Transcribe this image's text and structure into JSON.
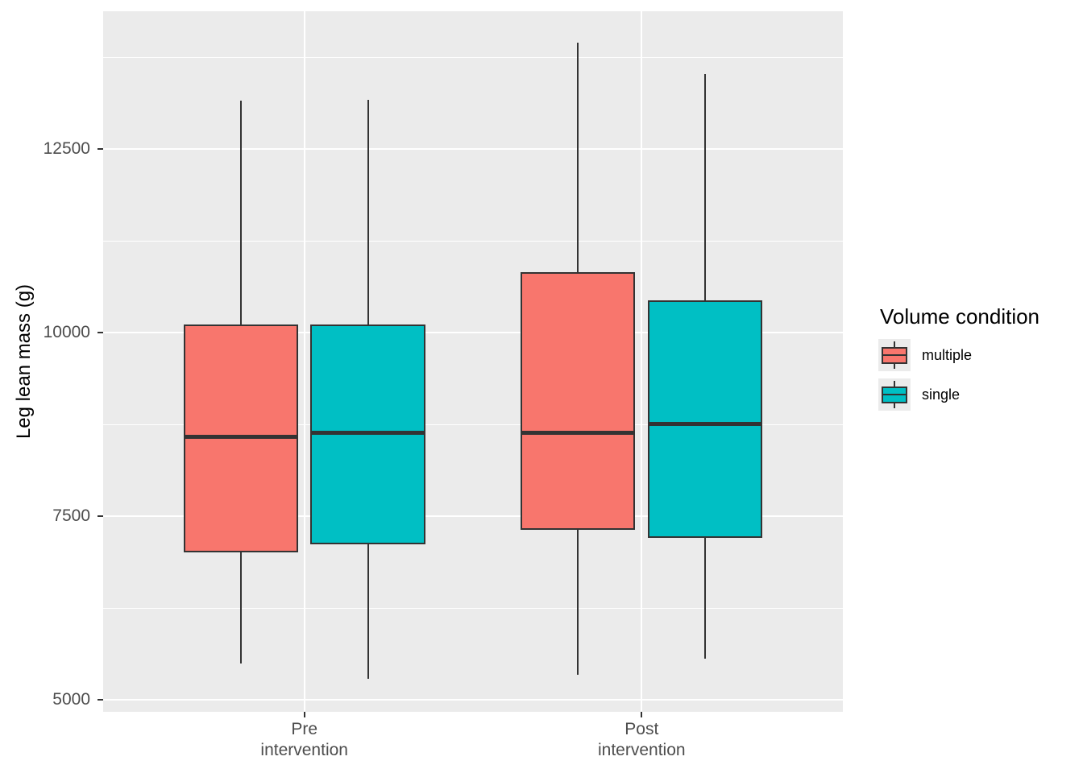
{
  "chart_data": {
    "type": "boxplot",
    "title": "",
    "xlabel": "",
    "ylabel": "Leg lean mass (g)",
    "categories": [
      "Pre intervention",
      "Post intervention"
    ],
    "category_label_lines": [
      [
        "Pre",
        "intervention"
      ],
      [
        "Post",
        "intervention"
      ]
    ],
    "ylim": [
      4835,
      14375
    ],
    "yticks": [
      5000,
      7500,
      10000,
      12500
    ],
    "minor_yticks": [
      6250,
      8750,
      11250,
      13750
    ],
    "grid": true,
    "legend": {
      "title": "Volume condition",
      "position": "right",
      "entries": [
        {
          "label": "multiple",
          "color": "#F8766D"
        },
        {
          "label": "single",
          "color": "#00BFC4"
        }
      ]
    },
    "series": [
      {
        "name": "multiple",
        "color": "#F8766D",
        "boxes": [
          {
            "category": "Pre intervention",
            "whisker_low": 5490,
            "q1": 7010,
            "median": 8590,
            "q3": 10110,
            "whisker_high": 13160
          },
          {
            "category": "Post intervention",
            "whisker_low": 5340,
            "q1": 7310,
            "median": 8640,
            "q3": 10820,
            "whisker_high": 13950
          }
        ]
      },
      {
        "name": "single",
        "color": "#00BFC4",
        "boxes": [
          {
            "category": "Pre intervention",
            "whisker_low": 5280,
            "q1": 7120,
            "median": 8640,
            "q3": 10110,
            "whisker_high": 13170
          },
          {
            "category": "Post intervention",
            "whisker_low": 5560,
            "q1": 7200,
            "median": 8760,
            "q3": 10440,
            "whisker_high": 13520
          }
        ]
      }
    ],
    "style": {
      "panel_bg": "#EBEBEB",
      "grid_color": "#FFFFFF",
      "box_border": "#333333",
      "axis_text_color": "#4D4D4D",
      "title_color": "#000000"
    }
  }
}
